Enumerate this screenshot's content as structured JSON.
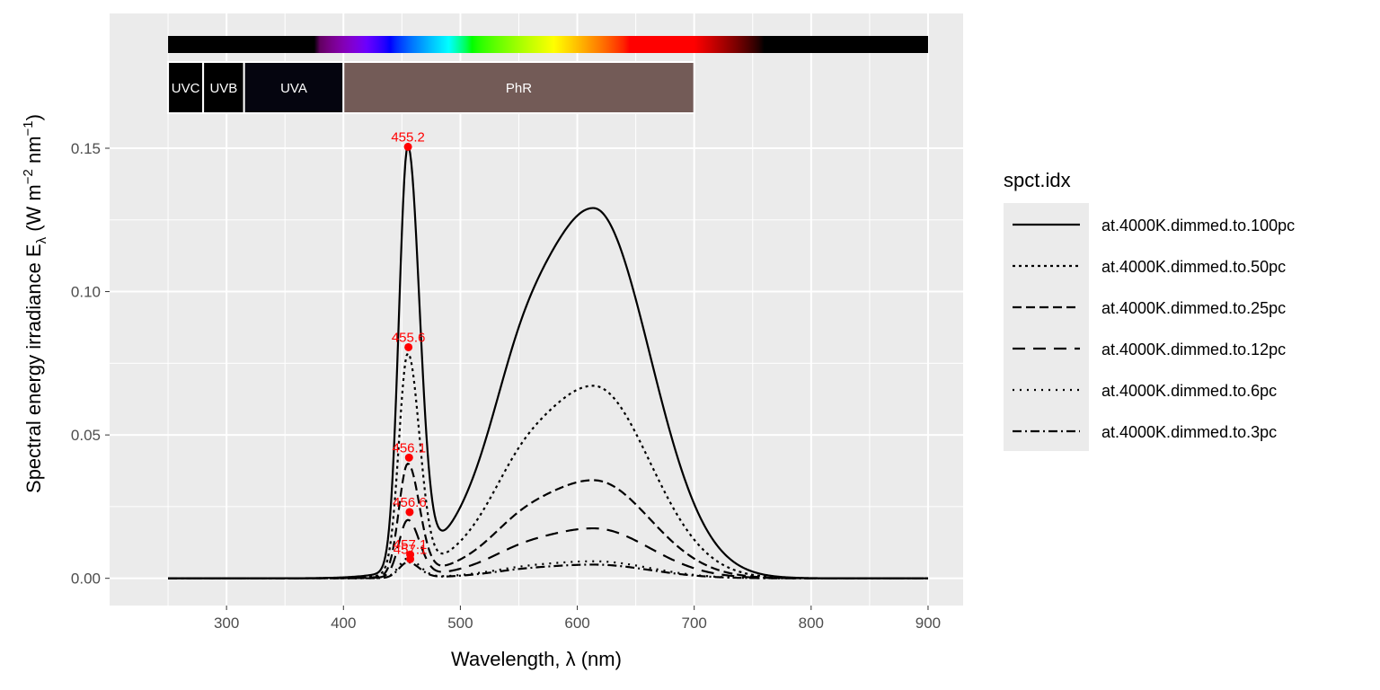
{
  "chart_data": {
    "type": "line",
    "xlabel": "Wavelength, λ (nm)",
    "ylabel": {
      "main": "Spectral  energy  irradiance  E",
      "lambda_sub": "λ",
      "unit_open": "(W m",
      "exp1": "−2",
      "unit_mid": " nm",
      "exp2": "−1",
      "unit_close": ")"
    },
    "xlim": [
      200,
      930
    ],
    "ylim": [
      -0.0095,
      0.197
    ],
    "x_ticks": [
      300,
      400,
      500,
      600,
      700,
      800,
      900
    ],
    "x_tick_labels": [
      "300",
      "400",
      "500",
      "600",
      "700",
      "800",
      "900"
    ],
    "y_ticks": [
      0.0,
      0.05,
      0.1,
      0.15
    ],
    "y_tick_labels": [
      "0.00",
      "0.05",
      "0.10",
      "0.15"
    ],
    "grid": true,
    "legend": {
      "title": "spct.idx",
      "position": "right"
    },
    "spectrum_shape": {
      "blue_peak": {
        "center": 455,
        "sigma_left": 7.5,
        "sigma_right": 10,
        "height": 0.146
      },
      "broad": {
        "center": 614,
        "sigma_left": 62,
        "sigma_right": 48,
        "height": 0.129
      },
      "mid_shoulder": {
        "center": 548,
        "sigma": 22,
        "height": 0.012
      }
    },
    "series": [
      {
        "name": "at.4000K.dimmed.to.100pc",
        "scale": 1.0,
        "dash": "",
        "peak": {
          "x": 455.2,
          "y": 0.1505,
          "label": "455.2"
        }
      },
      {
        "name": "at.4000K.dimmed.to.50pc",
        "scale": 0.52,
        "dash": "3,4",
        "peak": {
          "x": 455.6,
          "y": 0.0806,
          "label": "455.6"
        }
      },
      {
        "name": "at.4000K.dimmed.to.25pc",
        "scale": 0.265,
        "dash": "10,5",
        "peak": {
          "x": 456.1,
          "y": 0.0421,
          "label": "456.1"
        }
      },
      {
        "name": "at.4000K.dimmed.to.12pc",
        "scale": 0.135,
        "dash": "14,9",
        "peak": {
          "x": 456.6,
          "y": 0.0231,
          "label": "456.6"
        }
      },
      {
        "name": "at.4000K.dimmed.to.6pc",
        "scale": 0.046,
        "dash": "2,6",
        "peak": {
          "x": 457.1,
          "y": 0.0083,
          "label": "457.1"
        }
      },
      {
        "name": "at.4000K.dimmed.to.3pc",
        "scale": 0.037,
        "dash": "10,4,2,4",
        "peak": {
          "x": 457.1,
          "y": 0.0067,
          "label": "457.1"
        }
      }
    ],
    "wavebands": [
      {
        "name": "UVC",
        "from": 250,
        "to": 280,
        "color": "#000000"
      },
      {
        "name": "UVB",
        "from": 280,
        "to": 315,
        "color": "#000000"
      },
      {
        "name": "UVA",
        "from": 315,
        "to": 400,
        "color": "#05050f"
      },
      {
        "name": "PhR",
        "from": 400,
        "to": 700,
        "color": "#735b57"
      }
    ],
    "spectrum_bar": {
      "from": 250,
      "to": 900
    },
    "colors": {
      "panel_bg": "#ebebeb",
      "grid": "#ffffff",
      "line": "#000000",
      "peak": "#ff0000",
      "tick_text": "#4d4d4d"
    }
  }
}
